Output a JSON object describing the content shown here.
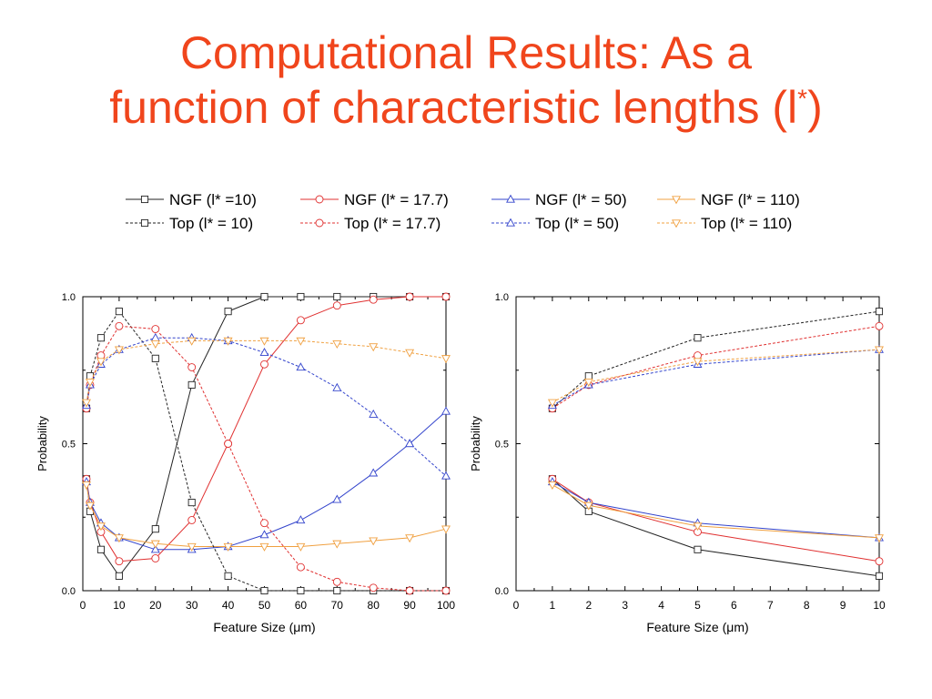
{
  "slide": {
    "title_line1": "Computational Results: As a",
    "title_line2_text": "function of characteristic lengths (l",
    "title_line2_sup": "*",
    "title_line2_close": ")"
  },
  "legend": {
    "entries": [
      {
        "label": "NGF (l* =10)",
        "color": "#222222",
        "marker": "square",
        "style": "solid"
      },
      {
        "label": "NGF (l* = 17.7)",
        "color": "#e03030",
        "marker": "circle",
        "style": "solid"
      },
      {
        "label": "NGF (l* = 50)",
        "color": "#3344cc",
        "marker": "triangle-up",
        "style": "solid"
      },
      {
        "label": "NGF (l* = 110)",
        "color": "#f0a040",
        "marker": "triangle-down",
        "style": "solid"
      },
      {
        "label": "Top (l* = 10)",
        "color": "#222222",
        "marker": "square",
        "style": "dashed"
      },
      {
        "label": "Top (l* = 17.7)",
        "color": "#e03030",
        "marker": "circle",
        "style": "dashed"
      },
      {
        "label": "Top (l* = 50)",
        "color": "#3344cc",
        "marker": "triangle-up",
        "style": "dashed"
      },
      {
        "label": "Top (l* = 110)",
        "color": "#f0a040",
        "marker": "triangle-down",
        "style": "dashed"
      }
    ]
  },
  "chart_data": [
    {
      "type": "line",
      "xlabel": "Feature Size (μm)",
      "ylabel": "Probability",
      "xlim": [
        0,
        100
      ],
      "ylim": [
        0,
        1
      ],
      "xticks": [
        "0",
        "10",
        "20",
        "30",
        "40",
        "50",
        "60",
        "70",
        "80",
        "90",
        "100"
      ],
      "yticks": [
        "0.0",
        "0.5",
        "1.0"
      ],
      "series": [
        {
          "name": "NGF (l* =10)",
          "color": "#222222",
          "marker": "square",
          "style": "solid",
          "x": [
            1,
            2,
            5,
            10,
            20,
            30,
            40,
            50,
            60,
            70,
            80,
            90,
            100
          ],
          "y": [
            0.38,
            0.27,
            0.14,
            0.05,
            0.21,
            0.7,
            0.95,
            1.0,
            1.0,
            1.0,
            1.0,
            1.0,
            1.0
          ]
        },
        {
          "name": "NGF (l* = 17.7)",
          "color": "#e03030",
          "marker": "circle",
          "style": "solid",
          "x": [
            1,
            2,
            5,
            10,
            20,
            30,
            40,
            50,
            60,
            70,
            80,
            90,
            100
          ],
          "y": [
            0.38,
            0.3,
            0.2,
            0.1,
            0.11,
            0.24,
            0.5,
            0.77,
            0.92,
            0.97,
            0.99,
            1.0,
            1.0
          ]
        },
        {
          "name": "NGF (l* = 50)",
          "color": "#3344cc",
          "marker": "triangle-up",
          "style": "solid",
          "x": [
            1,
            2,
            5,
            10,
            20,
            30,
            40,
            50,
            60,
            70,
            80,
            90,
            100
          ],
          "y": [
            0.37,
            0.3,
            0.23,
            0.18,
            0.14,
            0.14,
            0.15,
            0.19,
            0.24,
            0.31,
            0.4,
            0.5,
            0.61
          ]
        },
        {
          "name": "NGF (l* = 110)",
          "color": "#f0a040",
          "marker": "triangle-down",
          "style": "solid",
          "x": [
            1,
            2,
            5,
            10,
            20,
            30,
            40,
            50,
            60,
            70,
            80,
            90,
            100
          ],
          "y": [
            0.36,
            0.29,
            0.22,
            0.18,
            0.16,
            0.15,
            0.15,
            0.15,
            0.15,
            0.16,
            0.17,
            0.18,
            0.21
          ]
        },
        {
          "name": "Top (l* = 10)",
          "color": "#222222",
          "marker": "square",
          "style": "dashed",
          "x": [
            1,
            2,
            5,
            10,
            20,
            30,
            40,
            50,
            60,
            70,
            80,
            90,
            100
          ],
          "y": [
            0.62,
            0.73,
            0.86,
            0.95,
            0.79,
            0.3,
            0.05,
            0.0,
            0.0,
            0.0,
            0.0,
            0.0,
            0.0
          ]
        },
        {
          "name": "Top (l* = 17.7)",
          "color": "#e03030",
          "marker": "circle",
          "style": "dashed",
          "x": [
            1,
            2,
            5,
            10,
            20,
            30,
            40,
            50,
            60,
            70,
            80,
            90,
            100
          ],
          "y": [
            0.62,
            0.7,
            0.8,
            0.9,
            0.89,
            0.76,
            0.5,
            0.23,
            0.08,
            0.03,
            0.01,
            0.0,
            0.0
          ]
        },
        {
          "name": "Top (l* = 50)",
          "color": "#3344cc",
          "marker": "triangle-up",
          "style": "dashed",
          "x": [
            1,
            2,
            5,
            10,
            20,
            30,
            40,
            50,
            60,
            70,
            80,
            90,
            100
          ],
          "y": [
            0.63,
            0.7,
            0.77,
            0.82,
            0.86,
            0.86,
            0.85,
            0.81,
            0.76,
            0.69,
            0.6,
            0.5,
            0.39
          ]
        },
        {
          "name": "Top (l* = 110)",
          "color": "#f0a040",
          "marker": "triangle-down",
          "style": "dashed",
          "x": [
            1,
            2,
            5,
            10,
            20,
            30,
            40,
            50,
            60,
            70,
            80,
            90,
            100
          ],
          "y": [
            0.64,
            0.71,
            0.78,
            0.82,
            0.84,
            0.85,
            0.85,
            0.85,
            0.85,
            0.84,
            0.83,
            0.81,
            0.79
          ]
        }
      ]
    },
    {
      "type": "line",
      "xlabel": "Feature Size (μm)",
      "ylabel": "Probability",
      "xlim": [
        0,
        10
      ],
      "ylim": [
        0,
        1
      ],
      "xticks": [
        "0",
        "1",
        "2",
        "3",
        "4",
        "5",
        "6",
        "7",
        "8",
        "9",
        "10"
      ],
      "yticks": [
        "0.0",
        "0.5",
        "1.0"
      ],
      "series": [
        {
          "name": "NGF (l* =10)",
          "color": "#222222",
          "marker": "square",
          "style": "solid",
          "x": [
            1,
            2,
            5,
            10
          ],
          "y": [
            0.38,
            0.27,
            0.14,
            0.05
          ]
        },
        {
          "name": "NGF (l* = 17.7)",
          "color": "#e03030",
          "marker": "circle",
          "style": "solid",
          "x": [
            1,
            2,
            5,
            10
          ],
          "y": [
            0.38,
            0.3,
            0.2,
            0.1
          ]
        },
        {
          "name": "NGF (l* = 50)",
          "color": "#3344cc",
          "marker": "triangle-up",
          "style": "solid",
          "x": [
            1,
            2,
            5,
            10
          ],
          "y": [
            0.37,
            0.3,
            0.23,
            0.18
          ]
        },
        {
          "name": "NGF (l* = 110)",
          "color": "#f0a040",
          "marker": "triangle-down",
          "style": "solid",
          "x": [
            1,
            2,
            5,
            10
          ],
          "y": [
            0.36,
            0.29,
            0.22,
            0.18
          ]
        },
        {
          "name": "Top (l* = 10)",
          "color": "#222222",
          "marker": "square",
          "style": "dashed",
          "x": [
            1,
            2,
            5,
            10
          ],
          "y": [
            0.62,
            0.73,
            0.86,
            0.95
          ]
        },
        {
          "name": "Top (l* = 17.7)",
          "color": "#e03030",
          "marker": "circle",
          "style": "dashed",
          "x": [
            1,
            2,
            5,
            10
          ],
          "y": [
            0.62,
            0.7,
            0.8,
            0.9
          ]
        },
        {
          "name": "Top (l* = 50)",
          "color": "#3344cc",
          "marker": "triangle-up",
          "style": "dashed",
          "x": [
            1,
            2,
            5,
            10
          ],
          "y": [
            0.63,
            0.7,
            0.77,
            0.82
          ]
        },
        {
          "name": "Top (l* = 110)",
          "color": "#f0a040",
          "marker": "triangle-down",
          "style": "dashed",
          "x": [
            1,
            2,
            5,
            10
          ],
          "y": [
            0.64,
            0.71,
            0.78,
            0.82
          ]
        }
      ]
    }
  ]
}
